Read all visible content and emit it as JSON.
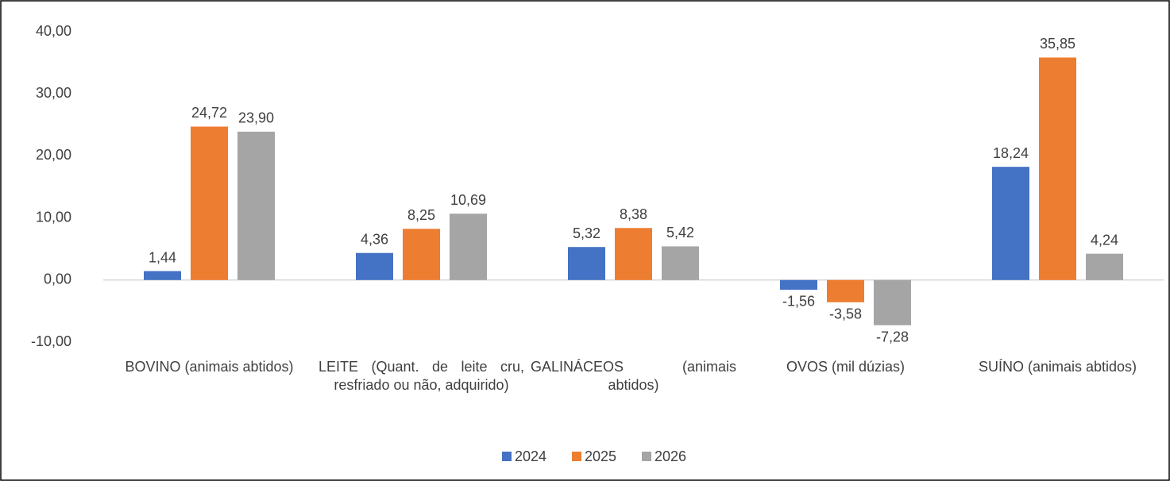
{
  "chart_data": {
    "type": "bar",
    "categories": [
      "BOVINO (animais abtidos)",
      "LEITE (Quant. de leite cru, resfriado ou não, adquirido)",
      "GALINÁCEOS (animais abtidos)",
      "OVOS (mil dúzias)",
      "SUÍNO (animais abtidos)"
    ],
    "series": [
      {
        "name": "2024",
        "color": "#4472c4",
        "values": [
          1.44,
          4.36,
          5.32,
          -1.56,
          18.24
        ],
        "value_labels": [
          "1,44",
          "4,36",
          "5,32",
          "-1,56",
          "18,24"
        ]
      },
      {
        "name": "2025",
        "color": "#ed7d31",
        "values": [
          24.72,
          8.25,
          8.38,
          -3.58,
          35.85
        ],
        "value_labels": [
          "24,72",
          "8,25",
          "8,38",
          "-3,58",
          "35,85"
        ]
      },
      {
        "name": "2026",
        "color": "#a5a5a5",
        "values": [
          23.9,
          10.69,
          5.42,
          -7.28,
          4.24
        ],
        "value_labels": [
          "23,90",
          "10,69",
          "5,42",
          "-7,28",
          "4,24"
        ]
      }
    ],
    "ylim": [
      -10,
      40
    ],
    "yticks": [
      {
        "value": -10,
        "label": "-10,00"
      },
      {
        "value": 0,
        "label": "0,00"
      },
      {
        "value": 10,
        "label": "10,00"
      },
      {
        "value": 20,
        "label": "20,00"
      },
      {
        "value": 30,
        "label": "30,00"
      },
      {
        "value": 40,
        "label": "40,00"
      }
    ],
    "legend": "bottom"
  }
}
